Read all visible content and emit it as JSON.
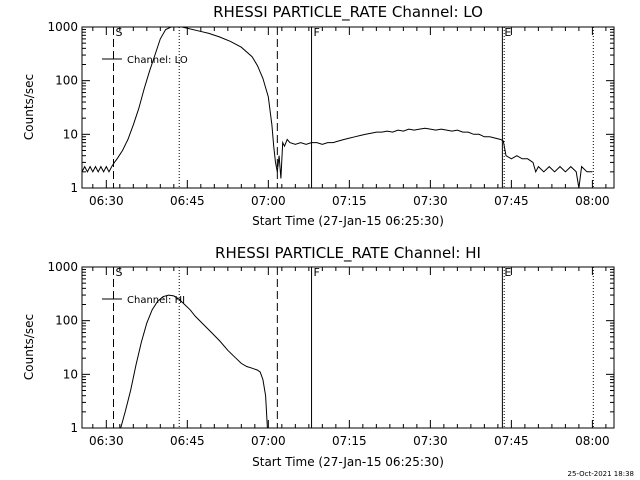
{
  "footer": {
    "timestamp": "25-Oct-2021 18:38"
  },
  "chart_data": [
    {
      "type": "line",
      "title": "RHESSI PARTICLE_RATE Channel: LO",
      "xlabel": "Start Time (27-Jan-15 06:25:30)",
      "ylabel": "Counts/sec",
      "yscale": "log",
      "ylim": [
        1,
        1000
      ],
      "xlim": [
        "06:25:30",
        "08:04:00"
      ],
      "yticks": [
        "1",
        "10",
        "100",
        "1000"
      ],
      "xticks": [
        "06:30",
        "06:45",
        "07:00",
        "07:15",
        "07:30",
        "07:45",
        "08:00"
      ],
      "grid": false,
      "legend": {
        "position": "top-left",
        "label": "Channel: LO"
      },
      "markers": [
        {
          "label": "S",
          "time": "06:31:20",
          "style": "dashed"
        },
        {
          "label": "",
          "time": "06:43:30",
          "style": "dotted"
        },
        {
          "label": "",
          "time": "07:01:40",
          "style": "dashed"
        },
        {
          "label": "F",
          "time": "07:08:00",
          "style": "solid"
        },
        {
          "label": "E",
          "time": "07:43:20",
          "style": "solid"
        },
        {
          "label": "",
          "time": "07:43:40",
          "style": "dotted"
        },
        {
          "label": "",
          "time": "08:00:10",
          "style": "dotted"
        }
      ],
      "series": [
        {
          "values": [
            [
              "06:25:30",
              2
            ],
            [
              "06:26:00",
              2.5
            ],
            [
              "06:26:30",
              2
            ],
            [
              "06:27:00",
              2.5
            ],
            [
              "06:27:30",
              2
            ],
            [
              "06:28:00",
              2.5
            ],
            [
              "06:28:30",
              2
            ],
            [
              "06:29:00",
              2.5
            ],
            [
              "06:29:30",
              2
            ],
            [
              "06:30:00",
              2.5
            ],
            [
              "06:30:30",
              2
            ],
            [
              "06:31:00",
              2.5
            ],
            [
              "06:31:30",
              3
            ],
            [
              "06:32:00",
              3.5
            ],
            [
              "06:33:00",
              5
            ],
            [
              "06:34:00",
              8
            ],
            [
              "06:35:00",
              15
            ],
            [
              "06:36:00",
              30
            ],
            [
              "06:37:00",
              70
            ],
            [
              "06:38:00",
              150
            ],
            [
              "06:39:00",
              300
            ],
            [
              "06:40:00",
              600
            ],
            [
              "06:41:00",
              900
            ],
            [
              "06:42:00",
              1000
            ],
            [
              "06:43:00",
              1000
            ],
            [
              "06:44:00",
              1000
            ],
            [
              "06:45:00",
              950
            ],
            [
              "06:47:00",
              850
            ],
            [
              "06:49:00",
              760
            ],
            [
              "06:51:00",
              650
            ],
            [
              "06:53:00",
              540
            ],
            [
              "06:55:00",
              420
            ],
            [
              "06:57:00",
              280
            ],
            [
              "06:58:00",
              190
            ],
            [
              "06:59:00",
              110
            ],
            [
              "07:00:00",
              50
            ],
            [
              "07:00:40",
              15
            ],
            [
              "07:01:00",
              6
            ],
            [
              "07:01:20",
              3
            ],
            [
              "07:01:40",
              2
            ],
            [
              "07:02:00",
              4
            ],
            [
              "07:02:20",
              1.5
            ],
            [
              "07:02:40",
              7
            ],
            [
              "07:03:00",
              6
            ],
            [
              "07:03:30",
              8
            ],
            [
              "07:04:00",
              7
            ],
            [
              "07:05:00",
              6.5
            ],
            [
              "07:06:00",
              7
            ],
            [
              "07:07:00",
              6.5
            ],
            [
              "07:08:00",
              7
            ],
            [
              "07:09:00",
              7
            ],
            [
              "07:10:00",
              6.5
            ],
            [
              "07:11:00",
              7
            ],
            [
              "07:12:00",
              7
            ],
            [
              "07:13:00",
              7.5
            ],
            [
              "07:14:00",
              8
            ],
            [
              "07:15:00",
              8.5
            ],
            [
              "07:16:00",
              9
            ],
            [
              "07:17:00",
              9.5
            ],
            [
              "07:18:00",
              10
            ],
            [
              "07:19:00",
              10.5
            ],
            [
              "07:20:00",
              11
            ],
            [
              "07:21:00",
              11
            ],
            [
              "07:22:00",
              11.5
            ],
            [
              "07:23:00",
              11
            ],
            [
              "07:24:00",
              12
            ],
            [
              "07:25:00",
              11.5
            ],
            [
              "07:26:00",
              12.5
            ],
            [
              "07:27:00",
              12
            ],
            [
              "07:28:00",
              12.5
            ],
            [
              "07:29:00",
              13
            ],
            [
              "07:30:00",
              12.5
            ],
            [
              "07:31:00",
              12
            ],
            [
              "07:32:00",
              12.5
            ],
            [
              "07:33:00",
              12
            ],
            [
              "07:34:00",
              11.5
            ],
            [
              "07:35:00",
              12
            ],
            [
              "07:36:00",
              11
            ],
            [
              "07:37:00",
              11
            ],
            [
              "07:38:00",
              10
            ],
            [
              "07:39:00",
              10
            ],
            [
              "07:40:00",
              9
            ],
            [
              "07:41:00",
              9
            ],
            [
              "07:42:00",
              8.5
            ],
            [
              "07:43:00",
              8
            ],
            [
              "07:43:30",
              7.5
            ],
            [
              "07:44:00",
              4
            ],
            [
              "07:45:00",
              3.5
            ],
            [
              "07:46:00",
              4
            ],
            [
              "07:47:00",
              3.5
            ],
            [
              "07:48:00",
              3.5
            ],
            [
              "07:49:00",
              3
            ],
            [
              "07:49:30",
              2
            ],
            [
              "07:50:00",
              2.5
            ],
            [
              "07:51:00",
              2
            ],
            [
              "07:52:00",
              2.5
            ],
            [
              "07:53:00",
              2
            ],
            [
              "07:54:00",
              2.5
            ],
            [
              "07:55:00",
              2
            ],
            [
              "07:56:00",
              2.5
            ],
            [
              "07:57:00",
              2
            ],
            [
              "07:57:30",
              1
            ],
            [
              "07:58:00",
              2.5
            ],
            [
              "07:59:00",
              2
            ],
            [
              "08:00:00",
              2
            ]
          ]
        }
      ]
    },
    {
      "type": "line",
      "title": "RHESSI PARTICLE_RATE Channel: HI",
      "xlabel": "Start Time (27-Jan-15 06:25:30)",
      "ylabel": "Counts/sec",
      "yscale": "log",
      "ylim": [
        1,
        1000
      ],
      "xlim": [
        "06:25:30",
        "08:04:00"
      ],
      "yticks": [
        "1",
        "10",
        "100",
        "1000"
      ],
      "xticks": [
        "06:30",
        "06:45",
        "07:00",
        "07:15",
        "07:30",
        "07:45",
        "08:00"
      ],
      "grid": false,
      "legend": {
        "position": "top-left",
        "label": "Channel: HI"
      },
      "markers": [
        {
          "label": "S",
          "time": "06:31:20",
          "style": "dashed"
        },
        {
          "label": "",
          "time": "06:43:30",
          "style": "dotted"
        },
        {
          "label": "",
          "time": "07:01:40",
          "style": "dashed"
        },
        {
          "label": "F",
          "time": "07:08:00",
          "style": "solid"
        },
        {
          "label": "E",
          "time": "07:43:20",
          "style": "solid"
        },
        {
          "label": "",
          "time": "07:43:40",
          "style": "dotted"
        },
        {
          "label": "",
          "time": "08:00:10",
          "style": "dotted"
        }
      ],
      "series": [
        {
          "values": [
            [
              "06:32:40",
              1
            ],
            [
              "06:33:30",
              2
            ],
            [
              "06:34:30",
              5
            ],
            [
              "06:35:30",
              15
            ],
            [
              "06:36:30",
              40
            ],
            [
              "06:37:30",
              90
            ],
            [
              "06:38:30",
              160
            ],
            [
              "06:39:30",
              230
            ],
            [
              "06:40:30",
              280
            ],
            [
              "06:41:30",
              300
            ],
            [
              "06:42:30",
              290
            ],
            [
              "06:43:30",
              250
            ],
            [
              "06:44:30",
              200
            ],
            [
              "06:45:30",
              160
            ],
            [
              "06:46:30",
              120
            ],
            [
              "06:48:00",
              85
            ],
            [
              "06:49:30",
              60
            ],
            [
              "06:51:00",
              42
            ],
            [
              "06:52:30",
              28
            ],
            [
              "06:54:00",
              20
            ],
            [
              "06:55:00",
              16
            ],
            [
              "06:56:00",
              14
            ],
            [
              "06:57:00",
              13
            ],
            [
              "06:58:00",
              12
            ],
            [
              "06:58:30",
              11
            ],
            [
              "06:59:00",
              8
            ],
            [
              "06:59:30",
              4
            ],
            [
              "06:59:50",
              1
            ]
          ]
        }
      ]
    }
  ]
}
